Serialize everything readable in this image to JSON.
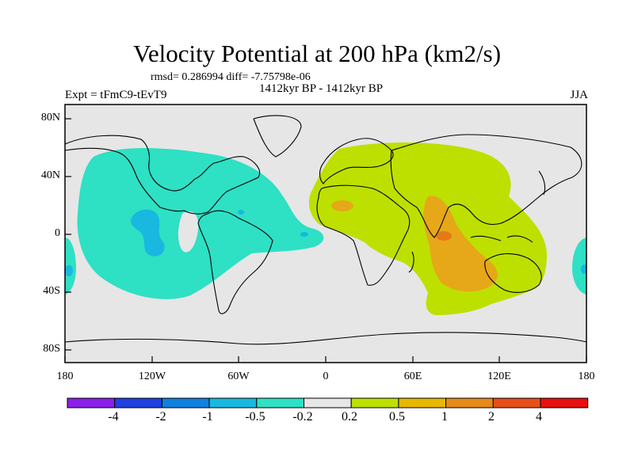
{
  "title": "Velocity Potential at 200 hPa (km2/s)",
  "stats": "rmsd= 0.286994 diff= -7.75798e-06",
  "experiment": "Expt = tFmC9-tEvT9",
  "period": "1412kyr BP - 1412kyr BP",
  "season": "JJA",
  "lat_labels": [
    "80N",
    "40N",
    "0",
    "40S",
    "80S"
  ],
  "lon_labels": [
    "180",
    "120W",
    "60W",
    "0",
    "60E",
    "120E",
    "180"
  ],
  "colors": {
    "background": "#e6e6e6",
    "cyan": "#2ee0c4",
    "blue_light": "#18b8e0",
    "lime": "#bde000",
    "amber": "#e6a818",
    "orange": "#e67818"
  },
  "colorbar": {
    "labels": [
      "-4",
      "-2",
      "-1",
      "-0.5",
      "-0.2",
      "0.2",
      "0.5",
      "1",
      "2",
      "4"
    ],
    "colors": [
      "#8a20e8",
      "#2040e0",
      "#1080e0",
      "#18b8e0",
      "#2ee0c4",
      "#e6e6e6",
      "#bde000",
      "#e6b800",
      "#e68a18",
      "#e65018",
      "#e61010"
    ]
  }
}
